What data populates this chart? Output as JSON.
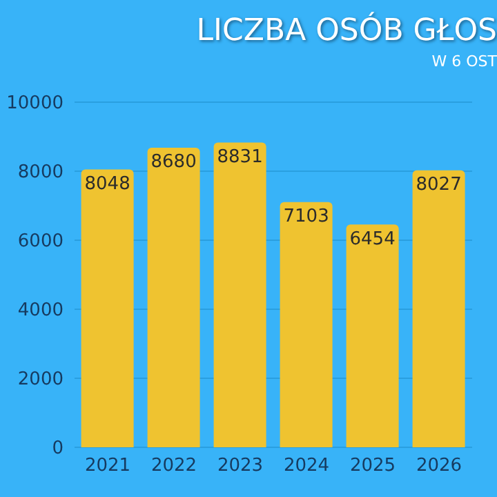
{
  "chart_data": {
    "type": "bar",
    "title": "LICZBA OSÓB GŁOS",
    "subtitle": "W 6 OST",
    "categories": [
      "2021",
      "2022",
      "2023",
      "2024",
      "2025",
      "2026"
    ],
    "values": [
      8048,
      8680,
      8831,
      7103,
      6454,
      8027
    ],
    "color": "#efc330",
    "ylim": [
      0,
      10000
    ],
    "yticks": [
      0,
      2000,
      4000,
      6000,
      8000,
      10000
    ],
    "grid": "y",
    "data_labels": true
  }
}
